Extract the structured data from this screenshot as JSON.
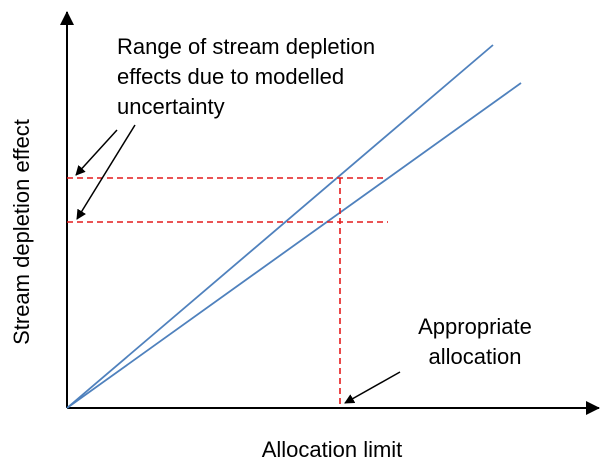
{
  "annotations": {
    "range": [
      "Range of stream depletion",
      "effects due to modelled",
      "uncertainty"
    ],
    "allocation": [
      "Appropriate",
      "allocation"
    ]
  },
  "axes": {
    "y_label": "Stream depletion effect",
    "x_label": "Allocation limit"
  }
}
